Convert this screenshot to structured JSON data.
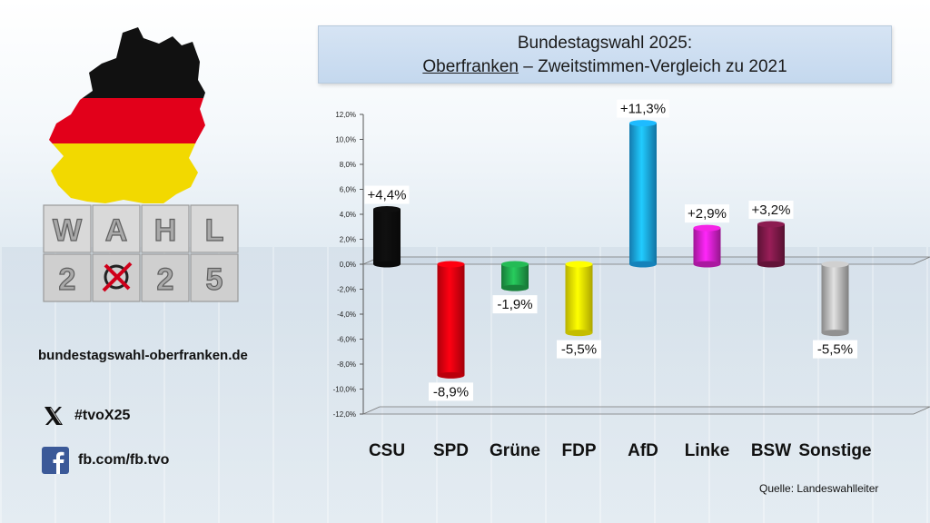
{
  "title": {
    "line1": "Bundestagswahl 2025:",
    "line2_underlined": "Oberfranken",
    "line2_rest": " – Zweitstimmen-Vergleich zu 2021"
  },
  "logo": {
    "label": "WAHL 2025",
    "flag_colors": [
      "#111111",
      "#e2001a",
      "#f2d900"
    ]
  },
  "website": "bundestagswahl-oberfranken.de",
  "social": {
    "x_icon": "x-logo-icon",
    "x_label": "#tvoX25",
    "fb_icon": "facebook-icon",
    "fb_label": "fb.com/fb.tvo"
  },
  "source": "Quelle: Landeswahlleiter",
  "chart_data": {
    "type": "bar",
    "categories": [
      "CSU",
      "SPD",
      "Grüne",
      "FDP",
      "AfD",
      "Linke",
      "BSW",
      "Sonstige"
    ],
    "values": [
      4.4,
      -8.9,
      -1.9,
      -5.5,
      11.3,
      2.9,
      3.2,
      -5.5
    ],
    "data_labels": [
      "+4,4%",
      "-8,9%",
      "-1,9%",
      "-5,5%",
      "+11,3%",
      "+2,9%",
      "+3,2%",
      "-5,5%"
    ],
    "colors": [
      "#0d0d0d",
      "#e8000e",
      "#1fa34a",
      "#f5ec00",
      "#1aa3e8",
      "#d41fc8",
      "#7a1846",
      "#b5b5b5"
    ],
    "ylim": [
      -12,
      12
    ],
    "yticks": [
      12,
      10,
      8,
      6,
      4,
      2,
      0,
      -2,
      -4,
      -6,
      -8,
      -10,
      -12
    ],
    "ytick_labels": [
      "12,0%",
      "10,0%",
      "8,0%",
      "6,0%",
      "4,0%",
      "2,0%",
      "0,0%",
      "-2,0%",
      "-4,0%",
      "-6,0%",
      "-8,0%",
      "-10,0%",
      "-12,0%"
    ],
    "xlabel": "",
    "ylabel": "",
    "grid": false,
    "legend": "none"
  }
}
